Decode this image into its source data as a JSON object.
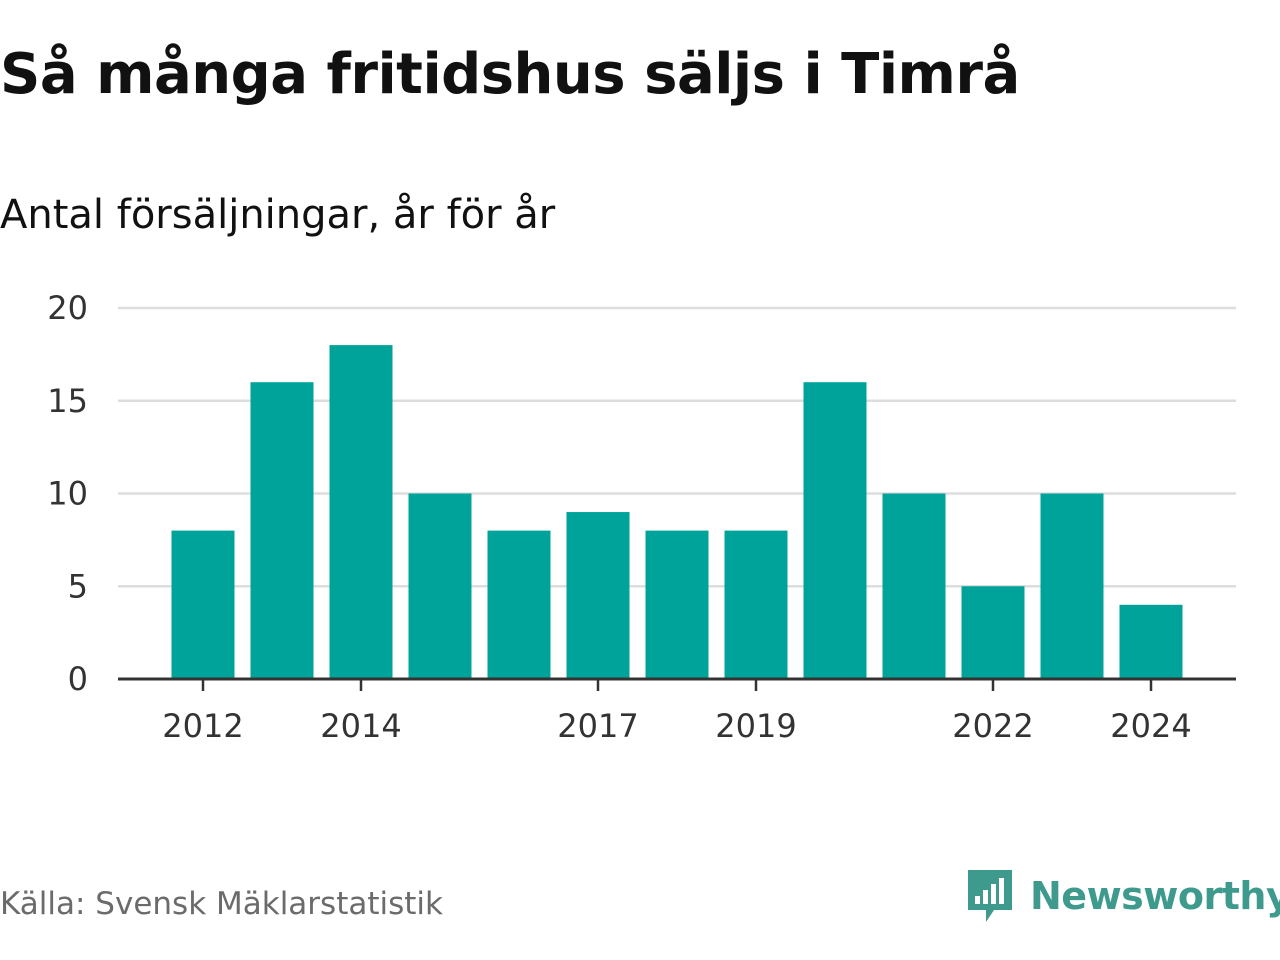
{
  "title": "Så många fritidshus säljs i Timrå",
  "subtitle": "Antal försäljningar, år för år",
  "source": "Källa: Svensk Mäklarstatistik",
  "brand": {
    "name": "Newsworthy",
    "icon": "newsworthy-logo-icon",
    "color": "#3e9a8d"
  },
  "chart_data": {
    "type": "bar",
    "categories": [
      2012,
      2013,
      2014,
      2015,
      2016,
      2017,
      2018,
      2019,
      2020,
      2021,
      2022,
      2023,
      2024
    ],
    "values": [
      8,
      16,
      18,
      10,
      8,
      9,
      8,
      8,
      16,
      10,
      5,
      10,
      4
    ],
    "xticks": [
      "2012",
      "2014",
      "2017",
      "2019",
      "2022",
      "2024"
    ],
    "yticks": [
      0,
      5,
      10,
      15,
      20
    ],
    "ylim": [
      0,
      20
    ],
    "xlabel": "",
    "ylabel": "",
    "grid": true,
    "bar_color": "#00a39a",
    "grid_color": "#dddddd",
    "axis_color": "#333333"
  }
}
